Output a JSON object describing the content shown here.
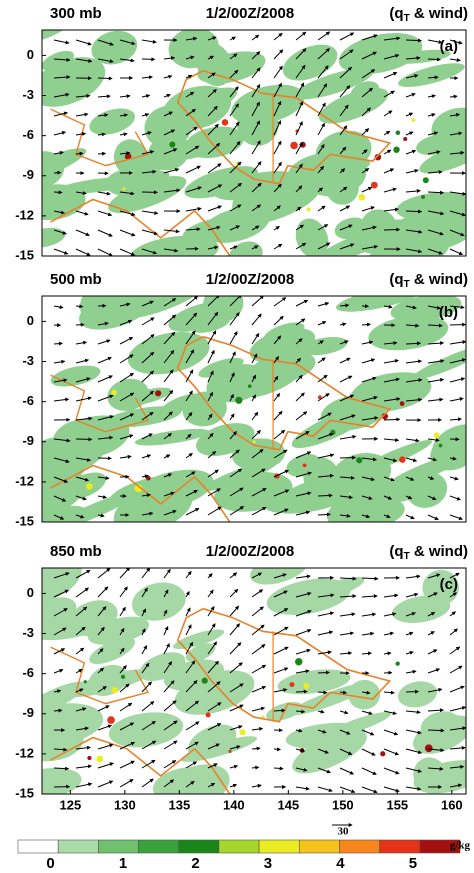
{
  "chart_data": [
    {
      "type": "map",
      "level": "300 mb",
      "time": "1/2/00Z/2008",
      "variable": [
        "(q",
        "T",
        " & wind)"
      ],
      "panel": "(a)",
      "xlim": [
        122.4,
        161.3
      ],
      "ylim": [
        -15,
        1.9
      ],
      "yticks": [
        0,
        -3,
        -6,
        -9,
        -12,
        -15
      ]
    },
    {
      "type": "map",
      "level": "500 mb",
      "time": "1/2/00Z/2008",
      "variable": [
        "(q",
        "T",
        " & wind)"
      ],
      "panel": "(b)",
      "xlim": [
        122.4,
        161.3
      ],
      "ylim": [
        -15,
        1.9
      ],
      "yticks": [
        0,
        -3,
        -6,
        -9,
        -12,
        -15
      ]
    },
    {
      "type": "map",
      "level": "850 mb",
      "time": "1/2/00Z/2008",
      "variable": [
        "(q",
        "T",
        " & wind)"
      ],
      "panel": "(c)",
      "xlim": [
        122.4,
        161.3
      ],
      "ylim": [
        -15,
        1.9
      ],
      "yticks": [
        0,
        -3,
        -6,
        -9,
        -12,
        -15
      ],
      "xticks": [
        125,
        130,
        135,
        140,
        145,
        150,
        155,
        160
      ]
    }
  ],
  "colorbar": {
    "colors": [
      "#ffffff",
      "#a9dba9",
      "#6fc06f",
      "#3aa23a",
      "#1a861a",
      "#a6d62a",
      "#ecec22",
      "#f7c21a",
      "#f8861a",
      "#e63218",
      "#a50f0f"
    ],
    "lim": [
      -0.45,
      5.65
    ],
    "ticks": [
      0,
      1,
      2,
      3,
      4,
      5
    ],
    "unit": "g/kg",
    "wind_reference": 30
  }
}
